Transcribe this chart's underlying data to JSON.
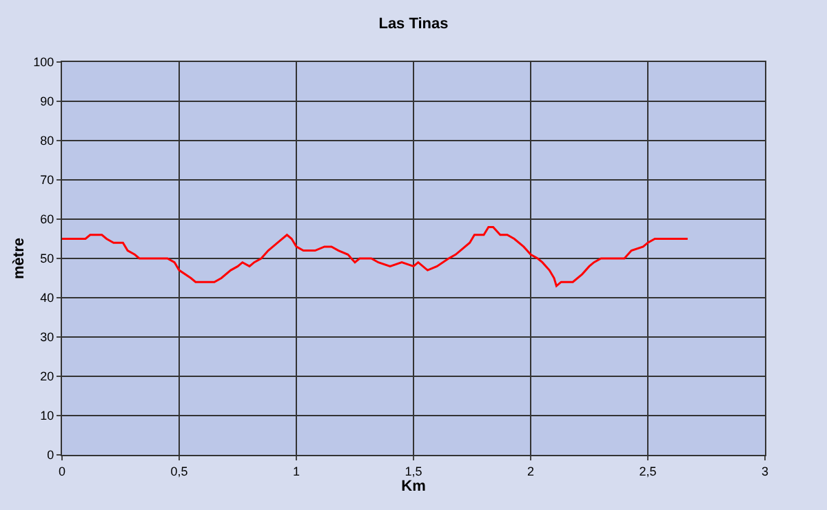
{
  "chart_data": {
    "type": "line",
    "title": "Las Tinas",
    "xlabel": "Km",
    "ylabel": "mètre",
    "x": [
      0,
      0.1,
      0.12,
      0.17,
      0.19,
      0.22,
      0.26,
      0.28,
      0.31,
      0.33,
      0.45,
      0.48,
      0.5,
      0.55,
      0.57,
      0.65,
      0.68,
      0.72,
      0.75,
      0.77,
      0.8,
      0.82,
      0.85,
      0.88,
      0.92,
      0.96,
      0.98,
      1.0,
      1.03,
      1.08,
      1.12,
      1.15,
      1.18,
      1.22,
      1.25,
      1.27,
      1.32,
      1.35,
      1.4,
      1.45,
      1.5,
      1.52,
      1.56,
      1.6,
      1.65,
      1.68,
      1.7,
      1.74,
      1.76,
      1.8,
      1.82,
      1.84,
      1.87,
      1.9,
      1.93,
      1.97,
      2.0,
      2.03,
      2.05,
      2.08,
      2.1,
      2.11,
      2.13,
      2.18,
      2.22,
      2.25,
      2.27,
      2.3,
      2.4,
      2.43,
      2.48,
      2.5,
      2.53,
      2.67
    ],
    "series": [
      {
        "color": "#ff0000",
        "values": [
          55,
          55,
          56,
          56,
          55,
          54,
          54,
          52,
          51,
          50,
          50,
          49,
          47,
          45,
          44,
          44,
          45,
          47,
          48,
          49,
          48,
          49,
          50,
          52,
          54,
          56,
          55,
          53,
          52,
          52,
          53,
          53,
          52,
          51,
          49,
          50,
          50,
          49,
          48,
          49,
          48,
          49,
          47,
          48,
          50,
          51,
          52,
          54,
          56,
          56,
          58,
          58,
          56,
          56,
          55,
          53,
          51,
          50,
          49,
          47,
          45,
          43,
          44,
          44,
          46,
          48,
          49,
          50,
          50,
          52,
          53,
          54,
          55,
          55
        ]
      }
    ],
    "xlim": [
      0,
      3
    ],
    "xticks": [
      0,
      {
        "value": 0.5,
        "label": "0,5"
      },
      1,
      {
        "value": 1.5,
        "label": "1,5"
      },
      2,
      {
        "value": 2.5,
        "label": "2,5"
      },
      3
    ],
    "ylim": [
      0,
      100
    ],
    "yticks": [
      0,
      10,
      20,
      30,
      40,
      50,
      60,
      70,
      80,
      90,
      100
    ],
    "grid": true,
    "legend": false,
    "marker": "none",
    "line_style": "solid"
  }
}
